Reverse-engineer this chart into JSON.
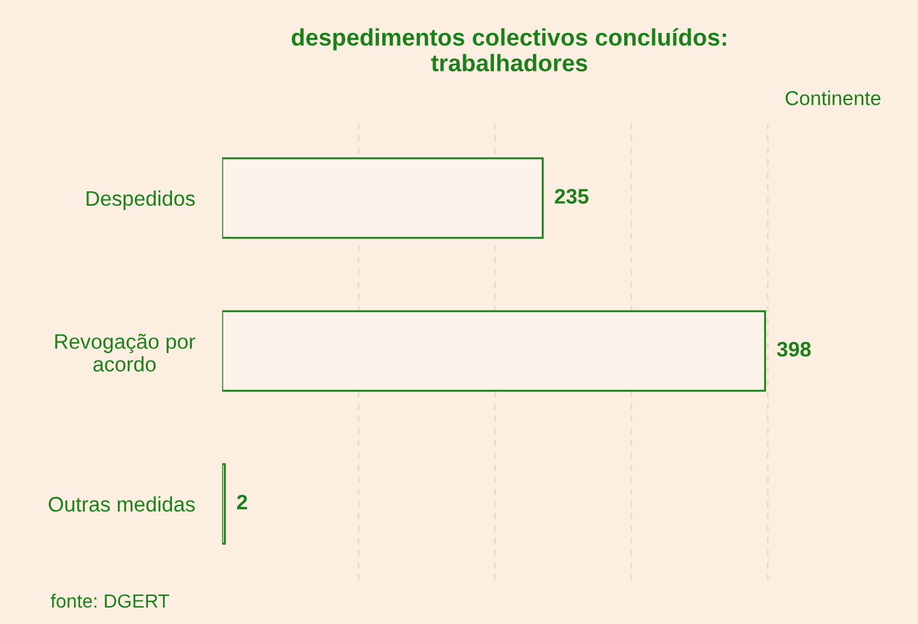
{
  "chart_data": {
    "type": "bar",
    "orientation": "horizontal",
    "title": "despedimentos colectivos concluídos:\ntrabalhadores",
    "subtitle": "Continente",
    "categories": [
      "Despedidos",
      "Revogação por\nacordo",
      "Outras medidas"
    ],
    "values": [
      235,
      398,
      2
    ],
    "color": "#fdf3ea",
    "data_labels": true,
    "xticks": [
      {
        "value": 100,
        "label": null
      },
      {
        "value": 200,
        "label": null
      },
      {
        "value": 300,
        "label": null
      },
      {
        "value": 400,
        "label": null
      }
    ],
    "tick_labels": "y",
    "grid": "x",
    "annotations": [
      "fonte: DGERT"
    ]
  }
}
